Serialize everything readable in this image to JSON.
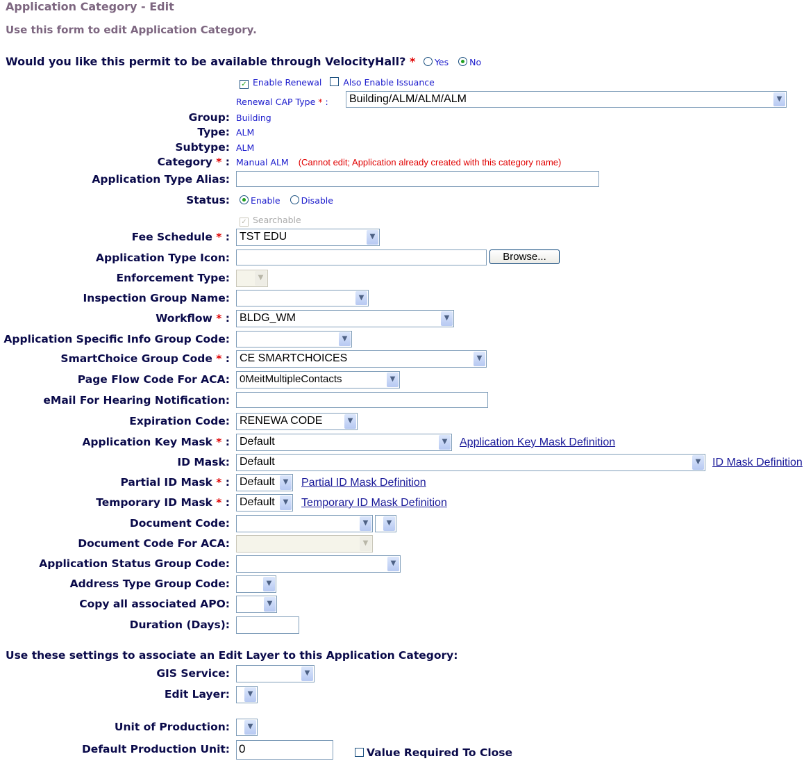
{
  "header": {
    "title": "Application Category - Edit",
    "subtitle": "Use this form to edit Application Category."
  },
  "velocity": {
    "question": "Would you like this permit to be available through VelocityHall?",
    "yes": "Yes",
    "no": "No",
    "selected": "No"
  },
  "renewal": {
    "enable_renewal": "Enable Renewal",
    "enable_renewal_checked": true,
    "also_issuance": "Also Enable Issuance",
    "also_issuance_checked": false,
    "cap_type_label": "Renewal CAP Type",
    "cap_type_value": "Building/ALM/ALM/ALM"
  },
  "fields": {
    "group": {
      "label": "Group:",
      "value": "Building"
    },
    "type": {
      "label": "Type:",
      "value": "ALM"
    },
    "subtype": {
      "label": "Subtype:",
      "value": "ALM"
    },
    "category": {
      "label": "Category",
      "value": "Manual ALM",
      "note": "(Cannot edit; Application already created with this category name)"
    },
    "alias": {
      "label": "Application Type Alias:",
      "value": ""
    },
    "status": {
      "label": "Status:",
      "enable": "Enable",
      "disable": "Disable",
      "selected": "Enable",
      "searchable": "Searchable"
    },
    "fee": {
      "label": "Fee Schedule",
      "value": "TST EDU"
    },
    "icon": {
      "label": "Application Type Icon:",
      "browse": "Browse..."
    },
    "enforcement": {
      "label": "Enforcement Type:",
      "value": ""
    },
    "inspection": {
      "label": "Inspection Group Name:",
      "value": ""
    },
    "workflow": {
      "label": "Workflow",
      "value": "BLDG_WM"
    },
    "asi": {
      "label": "Application Specific Info Group Code:",
      "value": ""
    },
    "smartchoice": {
      "label": "SmartChoice Group Code",
      "value": "CE SMARTCHOICES"
    },
    "pageflow": {
      "label": "Page Flow Code For ACA:",
      "value": "0MeitMultipleContacts"
    },
    "email": {
      "label": "eMail For Hearing Notification:",
      "value": ""
    },
    "expiration": {
      "label": "Expiration Code:",
      "value": "RENEWA CODE"
    },
    "appkey": {
      "label": "Application Key Mask",
      "value": "Default",
      "link": "Application Key Mask Definition"
    },
    "idmask": {
      "label": "ID Mask:",
      "value": "Default",
      "link": "ID Mask Definition"
    },
    "partial": {
      "label": "Partial ID Mask",
      "value": "Default",
      "link": "Partial ID Mask Definition"
    },
    "temp": {
      "label": "Temporary ID Mask",
      "value": "Default",
      "link": "Temporary ID Mask Definition"
    },
    "doc": {
      "label": "Document Code:",
      "value": ""
    },
    "docaca": {
      "label": "Document Code For ACA:",
      "value": ""
    },
    "appstatus": {
      "label": "Application Status Group Code:",
      "value": ""
    },
    "address": {
      "label": "Address Type Group Code:",
      "value": ""
    },
    "copyapo": {
      "label": "Copy all associated APO:",
      "value": ""
    },
    "duration": {
      "label": "Duration (Days):",
      "value": ""
    }
  },
  "edit_layer": {
    "heading": "Use these settings to associate an Edit Layer to this Application Category:",
    "gis": {
      "label": "GIS Service:",
      "value": ""
    },
    "layer": {
      "label": "Edit Layer:",
      "value": ""
    },
    "unit": {
      "label": "Unit of Production:",
      "value": ""
    },
    "default_unit": {
      "label": "Default Production Unit:",
      "value": "0"
    },
    "value_required": "Value Required To Close",
    "value_required_checked": false
  },
  "common": {
    "star": "*",
    "colon": ":",
    "check": "✓",
    "arrow": "⌄"
  }
}
